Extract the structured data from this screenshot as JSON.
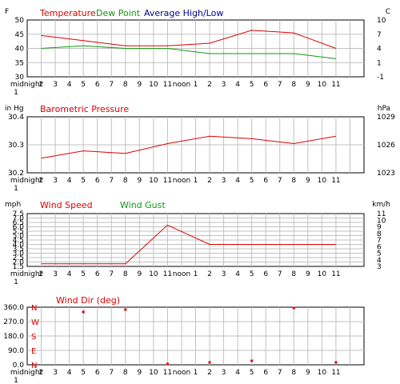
{
  "chart_data": [
    {
      "type": "line",
      "left_unit": "F",
      "right_unit": "C",
      "legend": [
        "Temperature",
        "Dew Point",
        "Average High/Low"
      ],
      "x_labels": [
        "midnight",
        "2",
        "3",
        "4",
        "5",
        "6",
        "7",
        "8",
        "9",
        "10",
        "11",
        "noon",
        "1",
        "2",
        "3",
        "4",
        "5",
        "6",
        "7",
        "8",
        "9",
        "10",
        "11"
      ],
      "x_sublabel": "1",
      "y_ticks": [
        "50",
        "45",
        "40",
        "35",
        "30"
      ],
      "ylim": [
        30,
        52
      ],
      "right_ticks": [
        "10",
        "7",
        "4",
        "1",
        "-1"
      ],
      "series": [
        {
          "name": "Temperature",
          "color": "#dd0000",
          "x": [
            1,
            4,
            7,
            10,
            13,
            16,
            19,
            22
          ],
          "y": [
            46,
            44,
            42,
            42,
            43,
            48,
            47,
            41
          ]
        },
        {
          "name": "Dew Point",
          "color": "#119911",
          "x": [
            1,
            4,
            7,
            10,
            13,
            16,
            19,
            22
          ],
          "y": [
            41,
            42,
            41,
            41,
            39,
            39,
            39,
            37
          ]
        }
      ]
    },
    {
      "type": "line",
      "left_unit": "in Hg",
      "right_unit": "hPa",
      "legend": [
        "Barometric Pressure"
      ],
      "x_labels": [
        "midnight",
        "2",
        "3",
        "4",
        "5",
        "6",
        "7",
        "8",
        "9",
        "10",
        "11",
        "noon",
        "1",
        "2",
        "3",
        "4",
        "5",
        "6",
        "7",
        "8",
        "9",
        "10",
        "11"
      ],
      "x_sublabel": "1",
      "y_ticks": [
        "30.4",
        "30.3",
        "30.2"
      ],
      "ylim": [
        30.2,
        30.43
      ],
      "right_ticks": [
        "1029",
        "1026",
        "1023"
      ],
      "series": [
        {
          "name": "Barometric Pressure",
          "color": "#dd0000",
          "x": [
            1,
            4,
            7,
            10,
            13,
            16,
            19,
            22
          ],
          "y": [
            30.26,
            30.29,
            30.28,
            30.32,
            30.35,
            30.34,
            30.32,
            30.35
          ]
        }
      ]
    },
    {
      "type": "line",
      "left_unit": "mph",
      "right_unit": "km/h",
      "legend": [
        "Wind Speed",
        "Wind Gust"
      ],
      "x_labels": [
        "midnight",
        "2",
        "3",
        "4",
        "5",
        "6",
        "7",
        "8",
        "9",
        "10",
        "11",
        "noon",
        "1",
        "2",
        "3",
        "4",
        "5",
        "6",
        "7",
        "8",
        "9",
        "10",
        "11"
      ],
      "x_sublabel": "1",
      "y_ticks": [
        "7.5",
        "7.0",
        "6.5",
        "6.0",
        "5.5",
        "5.0",
        "4.5",
        "4.0",
        "3.5",
        "3.0",
        "2.5",
        "2.0",
        "1.5"
      ],
      "ylim": [
        1.5,
        7.5
      ],
      "right_ticks": [
        "11",
        "10",
        "9",
        "8",
        "7",
        "6",
        "5",
        "4",
        "3"
      ],
      "series": [
        {
          "name": "Wind Speed",
          "color": "#dd0000",
          "x": [
            1,
            4,
            7,
            10,
            13,
            16,
            19,
            22
          ],
          "y": [
            1.8,
            1.8,
            1.8,
            6.2,
            4.0,
            4.0,
            4.0,
            4.0
          ]
        }
      ]
    },
    {
      "type": "scatter",
      "title": "Wind Dir (deg)",
      "x_labels": [
        "midnight",
        "2",
        "3",
        "4",
        "5",
        "6",
        "7",
        "8",
        "9",
        "10",
        "11",
        "noon",
        "1",
        "2",
        "3",
        "4",
        "5",
        "6",
        "7",
        "8",
        "9",
        "10",
        "11"
      ],
      "x_sublabel": "1",
      "y_ticks": [
        "360.0",
        "270.0",
        "180.0",
        "90.0",
        "0.0"
      ],
      "compass_labels": [
        "N",
        "W",
        "S",
        "E",
        "N"
      ],
      "ylim": [
        0,
        360
      ],
      "series": [
        {
          "name": "Wind Dir (deg)",
          "color": "#dd0000",
          "x": [
            4,
            7,
            10,
            13,
            16,
            19,
            22
          ],
          "y": [
            330,
            345,
            5,
            15,
            25,
            355,
            15
          ]
        }
      ]
    }
  ]
}
